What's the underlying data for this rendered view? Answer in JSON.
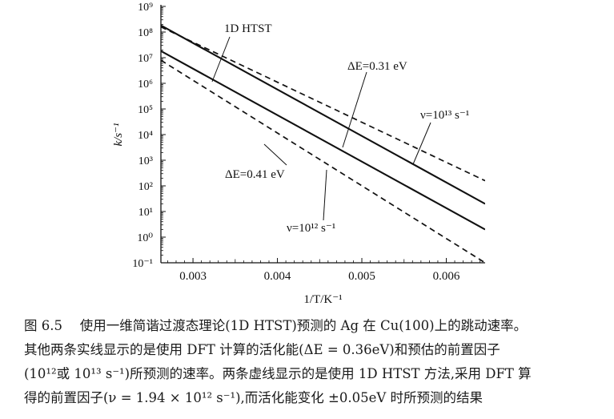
{
  "chart_data": {
    "type": "line",
    "xlabel": "1/T/K⁻¹",
    "ylabel": "k/s⁻¹",
    "xlim": [
      0.00262,
      0.00646
    ],
    "ylim": [
      -1,
      9
    ],
    "yscale": "log",
    "x_ticks": [
      0.003,
      0.004,
      0.005,
      0.006
    ],
    "x_tick_labels": [
      "0.003",
      "0.004",
      "0.005",
      "0.006"
    ],
    "y_tick_exponents": [
      -1,
      0,
      1,
      2,
      3,
      4,
      5,
      6,
      7,
      8,
      9
    ],
    "grid": false,
    "series": [
      {
        "name": "1D HTST",
        "style": "solid",
        "log10_prefactor": 13,
        "Ea_eV": 0.36,
        "x": [
          0.00262,
          0.00646
        ],
        "log10_k": [
          8.26,
          1.3
        ]
      },
      {
        "style": "solid",
        "log10_prefactor": 12,
        "Ea_eV": 0.36,
        "x": [
          0.00262,
          0.00646
        ],
        "log10_k": [
          7.26,
          0.3
        ]
      },
      {
        "style": "dashed",
        "log10_prefactor": 12.29,
        "Ea_eV": 0.31,
        "x": [
          0.00262,
          0.00646
        ],
        "log10_k": [
          8.2,
          2.2
        ]
      },
      {
        "style": "dashed",
        "log10_prefactor": 12.29,
        "Ea_eV": 0.41,
        "x": [
          0.00262,
          0.00646
        ],
        "log10_k": [
          6.9,
          -1.0
        ]
      }
    ],
    "annotations": [
      {
        "text": "1D HTST"
      },
      {
        "text": "ΔE=0.31 eV"
      },
      {
        "text": "ν=10¹³ s⁻¹"
      },
      {
        "text": "ΔE=0.41 eV"
      },
      {
        "text": "ν=10¹² s⁻¹"
      }
    ]
  },
  "caption": {
    "lines": [
      "图 6.5　 使用一维简谐过渡态理论(1D HTST)预测的 Ag 在 Cu(100)上的跳动速率。",
      "其他两条实线显示的是使用 DFT 计算的活化能(ΔE = 0.36eV)和预估的前置因子",
      "(10¹²或 10¹³ s⁻¹)所预测的速率。两条虚线显示的是使用 1D HTST 方法,采用 DFT 算",
      "得的前置因子(ν = 1.94 × 10¹² s⁻¹),而活化能变化 ±0.05eV 时所预测的结果"
    ]
  }
}
